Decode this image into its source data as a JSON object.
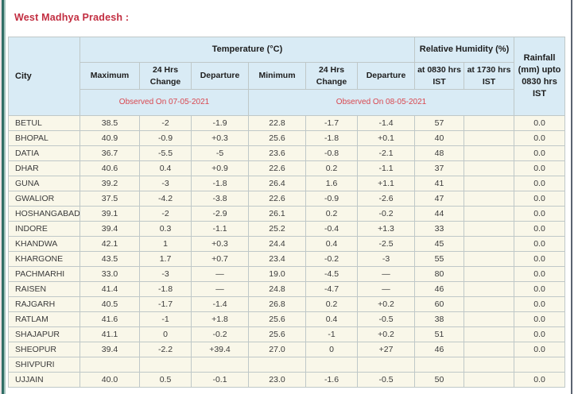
{
  "page": {
    "title": "West Madhya Pradesh :"
  },
  "table": {
    "col_groups": {
      "city": "City",
      "temperature": "Temperature (°C)",
      "humidity": "Relative Humidity (%)",
      "rainfall": "Rainfall (mm) upto 0830 hrs IST"
    },
    "sub_headers": [
      "Maximum",
      "24 Hrs Change",
      "Departure",
      "Minimum",
      "24 Hrs Change",
      "Departure",
      "at 0830 hrs IST",
      "at 1730 hrs IST"
    ],
    "observed": {
      "max_group": "Observed On 07-05-2021",
      "min_group": "Observed On 08-05-2021"
    },
    "row_fields": [
      "city",
      "max",
      "max_change",
      "max_departure",
      "min",
      "min_change",
      "min_departure",
      "rh_0830",
      "rh_1730",
      "rainfall"
    ],
    "rows": [
      {
        "city": "BETUL",
        "max": "38.5",
        "max_change": "-2",
        "max_departure": "-1.9",
        "min": "22.8",
        "min_change": "-1.7",
        "min_departure": "-1.4",
        "rh_0830": "57",
        "rh_1730": "",
        "rainfall": "0.0"
      },
      {
        "city": "BHOPAL",
        "max": "40.9",
        "max_change": "-0.9",
        "max_departure": "+0.3",
        "min": "25.6",
        "min_change": "-1.8",
        "min_departure": "+0.1",
        "rh_0830": "40",
        "rh_1730": "",
        "rainfall": "0.0"
      },
      {
        "city": "DATIA",
        "max": "36.7",
        "max_change": "-5.5",
        "max_departure": "-5",
        "min": "23.6",
        "min_change": "-0.8",
        "min_departure": "-2.1",
        "rh_0830": "48",
        "rh_1730": "",
        "rainfall": "0.0"
      },
      {
        "city": "DHAR",
        "max": "40.6",
        "max_change": "0.4",
        "max_departure": "+0.9",
        "min": "22.6",
        "min_change": "0.2",
        "min_departure": "-1.1",
        "rh_0830": "37",
        "rh_1730": "",
        "rainfall": "0.0"
      },
      {
        "city": "GUNA",
        "max": "39.2",
        "max_change": "-3",
        "max_departure": "-1.8",
        "min": "26.4",
        "min_change": "1.6",
        "min_departure": "+1.1",
        "rh_0830": "41",
        "rh_1730": "",
        "rainfall": "0.0"
      },
      {
        "city": "GWALIOR",
        "max": "37.5",
        "max_change": "-4.2",
        "max_departure": "-3.8",
        "min": "22.6",
        "min_change": "-0.9",
        "min_departure": "-2.6",
        "rh_0830": "47",
        "rh_1730": "",
        "rainfall": "0.0"
      },
      {
        "city": "HOSHANGABAD",
        "max": "39.1",
        "max_change": "-2",
        "max_departure": "-2.9",
        "min": "26.1",
        "min_change": "0.2",
        "min_departure": "-0.2",
        "rh_0830": "44",
        "rh_1730": "",
        "rainfall": "0.0"
      },
      {
        "city": "INDORE",
        "max": "39.4",
        "max_change": "0.3",
        "max_departure": "-1.1",
        "min": "25.2",
        "min_change": "-0.4",
        "min_departure": "+1.3",
        "rh_0830": "33",
        "rh_1730": "",
        "rainfall": "0.0"
      },
      {
        "city": "KHANDWA",
        "max": "42.1",
        "max_change": "1",
        "max_departure": "+0.3",
        "min": "24.4",
        "min_change": "0.4",
        "min_departure": "-2.5",
        "rh_0830": "45",
        "rh_1730": "",
        "rainfall": "0.0"
      },
      {
        "city": "KHARGONE",
        "max": "43.5",
        "max_change": "1.7",
        "max_departure": "+0.7",
        "min": "23.4",
        "min_change": "-0.2",
        "min_departure": "-3",
        "rh_0830": "55",
        "rh_1730": "",
        "rainfall": "0.0"
      },
      {
        "city": "PACHMARHI",
        "max": "33.0",
        "max_change": "-3",
        "max_departure": "—",
        "min": "19.0",
        "min_change": "-4.5",
        "min_departure": "—",
        "rh_0830": "80",
        "rh_1730": "",
        "rainfall": "0.0"
      },
      {
        "city": "RAISEN",
        "max": "41.4",
        "max_change": "-1.8",
        "max_departure": "—",
        "min": "24.8",
        "min_change": "-4.7",
        "min_departure": "—",
        "rh_0830": "46",
        "rh_1730": "",
        "rainfall": "0.0"
      },
      {
        "city": "RAJGARH",
        "max": "40.5",
        "max_change": "-1.7",
        "max_departure": "-1.4",
        "min": "26.8",
        "min_change": "0.2",
        "min_departure": "+0.2",
        "rh_0830": "60",
        "rh_1730": "",
        "rainfall": "0.0"
      },
      {
        "city": "RATLAM",
        "max": "41.6",
        "max_change": "-1",
        "max_departure": "+1.8",
        "min": "25.6",
        "min_change": "0.4",
        "min_departure": "-0.5",
        "rh_0830": "38",
        "rh_1730": "",
        "rainfall": "0.0"
      },
      {
        "city": "SHAJAPUR",
        "max": "41.1",
        "max_change": "0",
        "max_departure": "-0.2",
        "min": "25.6",
        "min_change": "-1",
        "min_departure": "+0.2",
        "rh_0830": "51",
        "rh_1730": "",
        "rainfall": "0.0"
      },
      {
        "city": "SHEOPUR",
        "max": "39.4",
        "max_change": "-2.2",
        "max_departure": "+39.4",
        "min": "27.0",
        "min_change": "0",
        "min_departure": "+27",
        "rh_0830": "46",
        "rh_1730": "",
        "rainfall": "0.0"
      },
      {
        "city": "SHIVPURI",
        "max": "",
        "max_change": "",
        "max_departure": "",
        "min": "",
        "min_change": "",
        "min_departure": "",
        "rh_0830": "",
        "rh_1730": "",
        "rainfall": ""
      },
      {
        "city": "UJJAIN",
        "max": "40.0",
        "max_change": "0.5",
        "max_departure": "-0.1",
        "min": "23.0",
        "min_change": "-1.6",
        "min_departure": "-0.5",
        "rh_0830": "50",
        "rh_1730": "",
        "rainfall": "0.0"
      }
    ]
  },
  "colors": {
    "title_red": "#c22e41",
    "observed_red": "#d9474f",
    "header_blue": "#d9ebf5",
    "row_cream": "#f9f7e9",
    "border_gray": "#bfc8c8",
    "edge_teal": "#316e66"
  }
}
